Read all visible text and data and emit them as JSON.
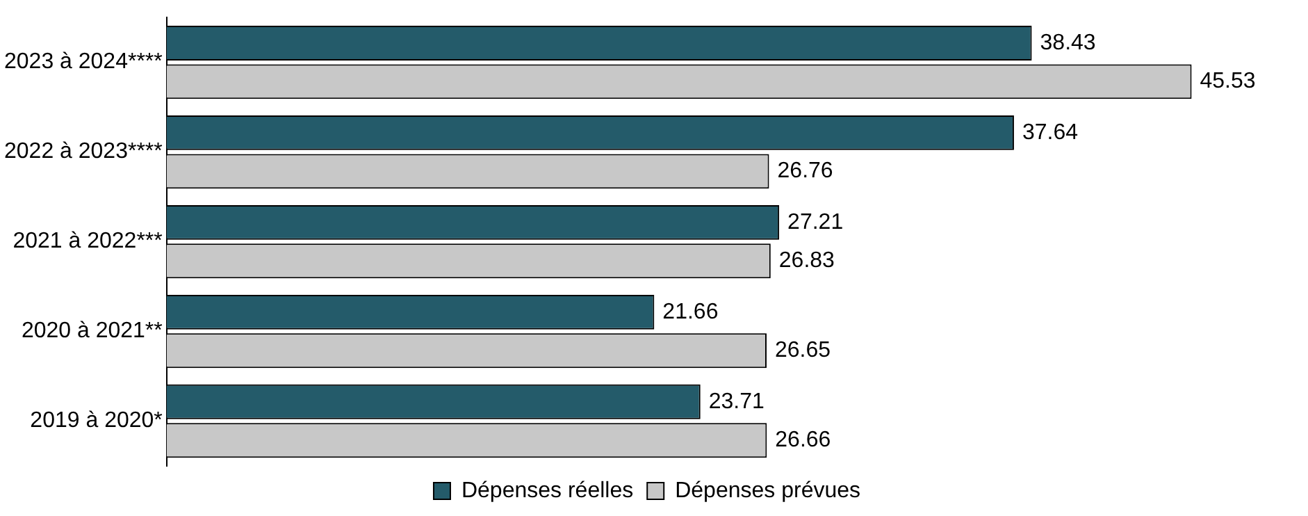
{
  "chart_data": {
    "type": "bar",
    "orientation": "horizontal",
    "categories": [
      "2023 à 2024****",
      "2022 à 2023****",
      "2021 à 2022***",
      "2020 à 2021**",
      "2019 à 2020*"
    ],
    "series": [
      {
        "name": "Dépenses réelles",
        "color": "#245b6a",
        "values": [
          38.43,
          37.64,
          27.21,
          21.66,
          23.71
        ]
      },
      {
        "name": "Dépenses prévues",
        "color": "#c8c8c8",
        "values": [
          45.53,
          26.76,
          26.83,
          26.65,
          26.66
        ]
      }
    ],
    "data_labels": true,
    "legend": "bottom"
  }
}
